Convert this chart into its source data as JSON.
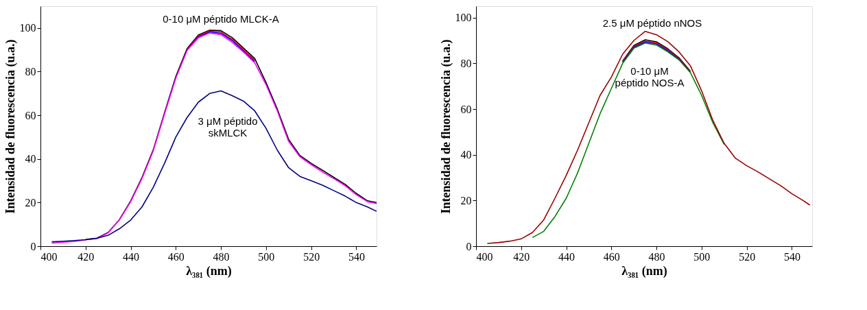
{
  "chart_data": [
    {
      "type": "line",
      "xlabel": "λ₃₈₁ (nm)",
      "ylabel": "Intensidad de fluorescencia (u.a.)",
      "xlim": [
        400,
        549
      ],
      "ylim": [
        0,
        110
      ],
      "xticks": [
        400,
        420,
        440,
        460,
        480,
        500,
        520,
        540
      ],
      "yticks": [
        0,
        20,
        40,
        60,
        80,
        100
      ],
      "grid": false,
      "legend": false,
      "x": [
        405,
        410,
        415,
        420,
        425,
        430,
        435,
        440,
        445,
        450,
        455,
        460,
        465,
        470,
        475,
        480,
        485,
        490,
        495,
        500,
        505,
        510,
        515,
        520,
        525,
        530,
        535,
        540,
        545,
        549
      ],
      "series": [
        {
          "color": "#000000",
          "values": [
            null,
            null,
            null,
            3.1,
            3.7,
            6.3,
            12.2,
            20.8,
            31.5,
            44.2,
            61.2,
            77.8,
            90.6,
            96.8,
            99.0,
            98.8,
            95.6,
            90.8,
            86.0,
            75.0,
            62.8,
            49.0,
            41.6,
            38.0,
            34.8,
            31.6,
            28.4,
            24.2,
            20.8,
            20.0
          ]
        },
        {
          "color": "#ff0000",
          "values": [
            null,
            null,
            null,
            null,
            null,
            null,
            null,
            null,
            null,
            null,
            null,
            null,
            90.2,
            96.3,
            98.6,
            98.2,
            94.8,
            90.0,
            85.2,
            null,
            null,
            null,
            null,
            null,
            null,
            null,
            null,
            null,
            null,
            null
          ]
        },
        {
          "color": "#0000ff",
          "values": [
            null,
            null,
            null,
            null,
            null,
            null,
            null,
            null,
            null,
            null,
            null,
            null,
            89.9,
            95.9,
            98.2,
            97.6,
            94.2,
            89.5,
            84.6,
            null,
            null,
            null,
            null,
            null,
            null,
            null,
            null,
            null,
            null,
            null
          ]
        },
        {
          "color": "#ff00ff",
          "values": [
            1.4,
            1.8,
            2.2,
            2.9,
            3.5,
            6.1,
            12.0,
            20.4,
            31.0,
            43.7,
            60.6,
            77.0,
            89.7,
            95.5,
            97.7,
            97.0,
            93.4,
            89.0,
            84.0,
            74.0,
            62.0,
            48.0,
            41.0,
            37.4,
            34.0,
            31.0,
            27.8,
            23.6,
            20.4,
            19.6
          ]
        },
        {
          "color": "#000080",
          "values": [
            2.0,
            2.3,
            2.6,
            3.0,
            3.6,
            5.0,
            8.0,
            12.0,
            18.0,
            27.0,
            38.0,
            50.0,
            59.0,
            66.0,
            70.0,
            71.2,
            69.0,
            66.5,
            62.0,
            54.0,
            44.0,
            36.0,
            32.0,
            30.0,
            28.0,
            25.5,
            23.0,
            20.0,
            18.0,
            16.0
          ]
        }
      ],
      "annotations": [
        "0-10 μM péptido MLCK-A",
        "3 μM péptido\nskMLCK"
      ]
    },
    {
      "type": "line",
      "xlabel": "λ₃₈₁ (nm)",
      "ylabel": "Intensidad de fluorescencia (u.a.)",
      "xlim": [
        400,
        549
      ],
      "ylim": [
        0,
        105
      ],
      "xticks": [
        400,
        420,
        440,
        460,
        480,
        500,
        520,
        540
      ],
      "yticks": [
        0,
        20,
        40,
        60,
        80,
        100
      ],
      "grid": false,
      "legend": false,
      "x": [
        405,
        410,
        415,
        420,
        425,
        430,
        435,
        440,
        445,
        450,
        455,
        460,
        465,
        470,
        475,
        480,
        485,
        490,
        495,
        500,
        505,
        510,
        515,
        520,
        525,
        530,
        535,
        540,
        545,
        548
      ],
      "series": [
        {
          "color": "#000000",
          "values": [
            null,
            null,
            null,
            null,
            null,
            null,
            null,
            null,
            null,
            null,
            null,
            null,
            81.0,
            87.8,
            90.3,
            89.4,
            86.4,
            82.4,
            76.6,
            null,
            null,
            null,
            null,
            null,
            null,
            null,
            null,
            null,
            null,
            null
          ]
        },
        {
          "color": "#ff0000",
          "values": [
            null,
            null,
            null,
            null,
            null,
            null,
            null,
            null,
            null,
            null,
            null,
            null,
            80.7,
            87.4,
            89.7,
            89.0,
            86.0,
            82.0,
            76.4,
            null,
            null,
            null,
            null,
            null,
            null,
            null,
            null,
            null,
            null,
            null
          ]
        },
        {
          "color": "#0000ff",
          "values": [
            null,
            null,
            null,
            null,
            null,
            null,
            null,
            null,
            null,
            null,
            null,
            null,
            80.4,
            87.0,
            89.3,
            88.5,
            85.5,
            81.7,
            76.2,
            null,
            null,
            null,
            null,
            null,
            null,
            null,
            null,
            null,
            null,
            null
          ]
        },
        {
          "color": "#008000",
          "values": [
            null,
            null,
            null,
            null,
            3.8,
            6.5,
            13.0,
            21.0,
            32.0,
            45.0,
            58.0,
            69.0,
            80.0,
            86.6,
            88.9,
            88.0,
            85.0,
            81.5,
            76.0,
            66.0,
            54.0,
            44.5,
            null,
            null,
            null,
            null,
            null,
            null,
            null,
            null
          ]
        },
        {
          "color": "#990000",
          "values": [
            1.2,
            1.6,
            2.2,
            3.2,
            6.0,
            11.5,
            21.0,
            31.0,
            42.0,
            54.0,
            66.0,
            74.0,
            84.0,
            90.0,
            94.0,
            92.5,
            89.5,
            85.0,
            79.0,
            68.0,
            55.0,
            45.0,
            38.5,
            35.2,
            32.5,
            29.5,
            26.5,
            23.0,
            20.0,
            18.0
          ]
        }
      ],
      "annotations": [
        "2.5 μM péptido nNOS",
        "0-10 μM\npéptido NOS-A"
      ]
    }
  ]
}
